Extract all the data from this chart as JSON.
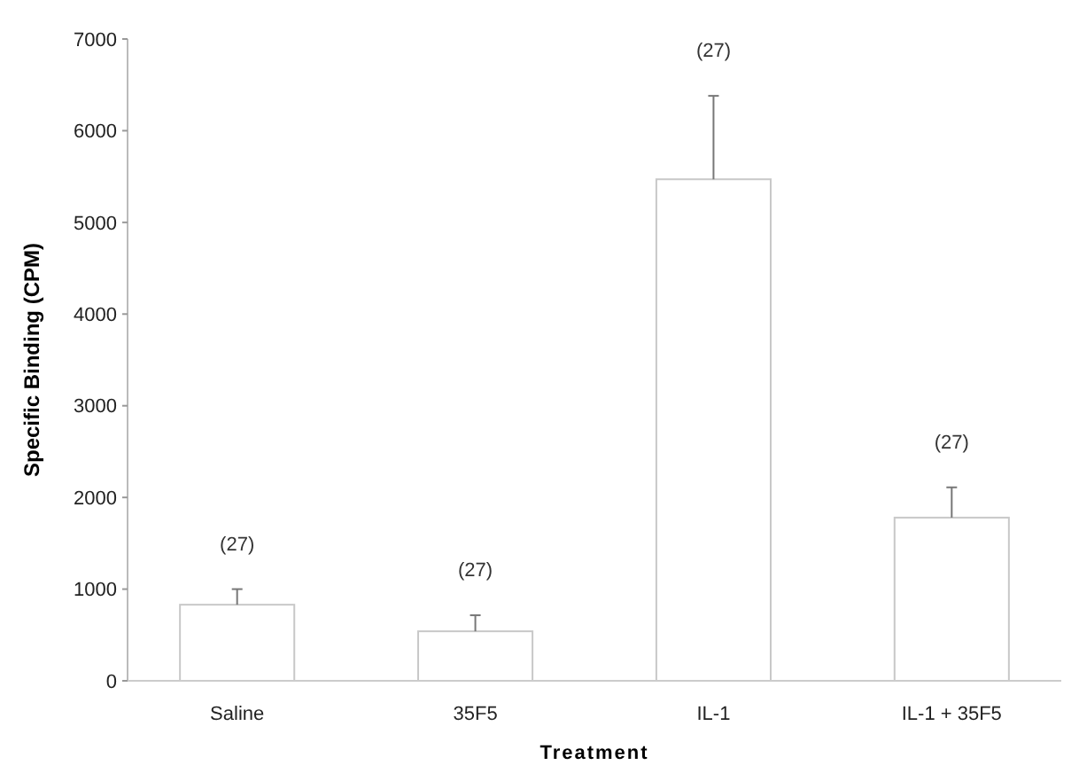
{
  "chart_data": {
    "type": "bar",
    "xlabel": "Treatment",
    "ylabel": "Specific Binding (CPM)",
    "categories": [
      "Saline",
      "35F5",
      "IL-1",
      "IL-1 + 35F5"
    ],
    "values": [
      830,
      540,
      5470,
      1780
    ],
    "errors": [
      [
        830,
        1000
      ],
      [
        540,
        715
      ],
      [
        5470,
        6380
      ],
      [
        1780,
        2110
      ]
    ],
    "color": "#ffffff",
    "ylim": [
      0,
      7000
    ],
    "yticks": [
      0,
      1000,
      2000,
      3000,
      4000,
      5000,
      6000,
      7000
    ],
    "annotations": [
      {
        "text": "(27)",
        "x": "Saline",
        "y": 1000
      },
      {
        "text": "(27)",
        "x": "35F5",
        "y": 715
      },
      {
        "text": "(27)",
        "x": "IL-1",
        "y": 6380
      },
      {
        "text": "(27)",
        "x": "IL-1 + 35F5",
        "y": 2110
      }
    ]
  }
}
